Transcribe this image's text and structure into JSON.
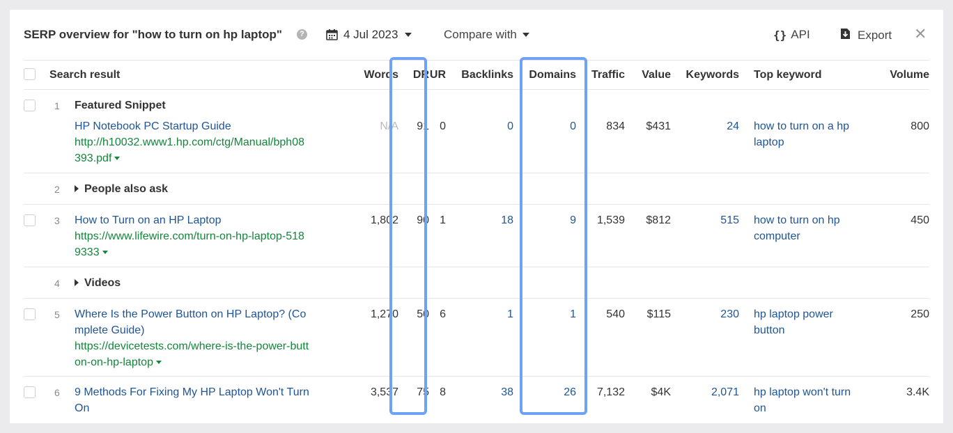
{
  "header": {
    "title": "SERP overview for \"how to turn on hp laptop\"",
    "help_glyph": "?",
    "date": "4 Jul 2023",
    "compare": "Compare with",
    "api_glyph": "{}",
    "api": "API",
    "export": "Export",
    "close_glyph": "✕"
  },
  "columns": {
    "search_result": "Search result",
    "words": "Words",
    "dr": "DR",
    "ur": "UR",
    "backlinks": "Backlinks",
    "domains": "Domains",
    "traffic": "Traffic",
    "value": "Value",
    "keywords": "Keywords",
    "top_keyword": "Top keyword",
    "volume": "Volume"
  },
  "rows": [
    {
      "index": "1",
      "label": "Featured Snippet",
      "title": "HP Notebook PC Startup Guide",
      "url_line1": "http://h10032.www1.hp.com/ctg/Manual/bph08",
      "url_line2": "393.pdf",
      "words": "N/A",
      "dr": "91",
      "ur": "0",
      "backlinks": "0",
      "domains": "0",
      "traffic": "834",
      "value": "$431",
      "keywords": "24",
      "top_kw_line1": "how to turn on a hp",
      "top_kw_line2": "laptop",
      "volume": "800"
    },
    {
      "index": "2",
      "group": "People also ask"
    },
    {
      "index": "3",
      "title": "How to Turn on an HP Laptop",
      "url_line1": "https://www.lifewire.com/turn-on-hp-laptop-518",
      "url_line2": "9333",
      "words": "1,802",
      "dr": "90",
      "ur": "1",
      "backlinks": "18",
      "domains": "9",
      "traffic": "1,539",
      "value": "$812",
      "keywords": "515",
      "top_kw_line1": "how to turn on hp",
      "top_kw_line2": "computer",
      "volume": "450"
    },
    {
      "index": "4",
      "group": "Videos"
    },
    {
      "index": "5",
      "title_line1": "Where Is the Power Button on HP Laptop? (Co",
      "title_line2": "mplete Guide)",
      "url_line1": "https://devicetests.com/where-is-the-power-butt",
      "url_line2": "on-on-hp-laptop",
      "words": "1,270",
      "dr": "50",
      "ur": "6",
      "backlinks": "1",
      "domains": "1",
      "traffic": "540",
      "value": "$115",
      "keywords": "230",
      "top_kw_line1": "hp laptop power",
      "top_kw_line2": "button",
      "volume": "250"
    },
    {
      "index": "6",
      "title_line1": "9 Methods For Fixing My HP Laptop Won't Turn",
      "title_line2": "On",
      "words": "3,537",
      "dr": "75",
      "ur": "8",
      "backlinks": "38",
      "domains": "26",
      "traffic": "7,132",
      "value": "$4K",
      "keywords": "2,071",
      "top_kw_line1": "hp laptop won't turn",
      "top_kw_line2": "on",
      "volume": "3.4K"
    }
  ],
  "colors": {
    "link": "#1f5596",
    "url": "#14853b",
    "highlight": "#6ea2f5"
  }
}
